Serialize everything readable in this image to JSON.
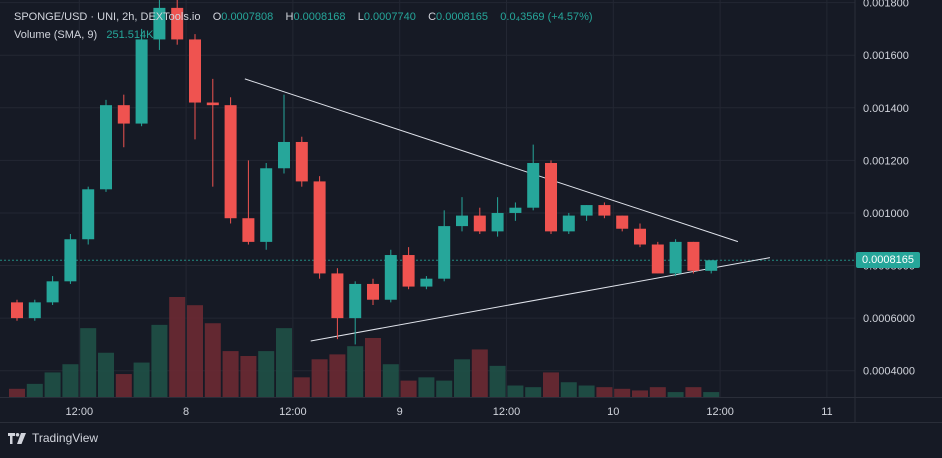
{
  "legend": {
    "symbol": "SPONGE/USD · UNI, 2h, DEXTools.io",
    "o_label": "O",
    "o": "0.0007808",
    "h_label": "H",
    "h": "0.0008168",
    "l_label": "L",
    "l": "0.0007740",
    "c_label": "C",
    "c": "0.0008165",
    "change": "0.0₄3569 (+4.57%)",
    "volume_label": "Volume (SMA, 9)",
    "volume_value": "251.514K"
  },
  "last_price_label": "0.0008165",
  "footer": {
    "brand": "TradingView"
  },
  "colors": {
    "background": "#161a25",
    "up": "#26a69a",
    "down": "#ef5350",
    "grid": "#232733",
    "text": "#d1d4dc"
  },
  "chart_data": {
    "type": "candlestick",
    "title": "SPONGE/USD · UNI, 2h, DEXTools.io",
    "ylim": [
      0.0003,
      0.00181
    ],
    "y_ticks": [
      "0.0004000",
      "0.0006000",
      "0.0008000",
      "0.001000",
      "0.001200",
      "0.001400",
      "0.001600",
      "0.001800"
    ],
    "y_tick_values": [
      0.0004,
      0.0006,
      0.0008,
      0.001,
      0.0012,
      0.0014,
      0.0016,
      0.0018
    ],
    "x_ticks": [
      {
        "label": "12:00",
        "index": 3.5
      },
      {
        "label": "8",
        "index": 9.5
      },
      {
        "label": "12:00",
        "index": 15.5
      },
      {
        "label": "9",
        "index": 21.5
      },
      {
        "label": "12:00",
        "index": 27.5
      },
      {
        "label": "10",
        "index": 33.5
      },
      {
        "label": "12:00",
        "index": 39.5
      },
      {
        "label": "11",
        "index": 45.5
      }
    ],
    "candles": [
      {
        "o": 0.00066,
        "h": 0.00067,
        "l": 0.00059,
        "c": 0.0006
      },
      {
        "o": 0.0006,
        "h": 0.00067,
        "l": 0.00059,
        "c": 0.00066
      },
      {
        "o": 0.00066,
        "h": 0.00076,
        "l": 0.00065,
        "c": 0.00074
      },
      {
        "o": 0.00074,
        "h": 0.00092,
        "l": 0.00073,
        "c": 0.0009
      },
      {
        "o": 0.0009,
        "h": 0.0011,
        "l": 0.00088,
        "c": 0.00109
      },
      {
        "o": 0.00109,
        "h": 0.00143,
        "l": 0.00108,
        "c": 0.00141
      },
      {
        "o": 0.00141,
        "h": 0.00145,
        "l": 0.00125,
        "c": 0.00134
      },
      {
        "o": 0.00134,
        "h": 0.0017,
        "l": 0.00133,
        "c": 0.00166
      },
      {
        "o": 0.00166,
        "h": 0.00182,
        "l": 0.00162,
        "c": 0.00178
      },
      {
        "o": 0.00178,
        "h": 0.00182,
        "l": 0.00164,
        "c": 0.00166
      },
      {
        "o": 0.00166,
        "h": 0.00168,
        "l": 0.00128,
        "c": 0.00142
      },
      {
        "o": 0.00142,
        "h": 0.00151,
        "l": 0.0011,
        "c": 0.00141
      },
      {
        "o": 0.00141,
        "h": 0.00144,
        "l": 0.00096,
        "c": 0.00098
      },
      {
        "o": 0.00098,
        "h": 0.0012,
        "l": 0.00088,
        "c": 0.00089
      },
      {
        "o": 0.00089,
        "h": 0.00119,
        "l": 0.00086,
        "c": 0.00117
      },
      {
        "o": 0.00117,
        "h": 0.00145,
        "l": 0.00115,
        "c": 0.00127
      },
      {
        "o": 0.00127,
        "h": 0.00129,
        "l": 0.0011,
        "c": 0.00112
      },
      {
        "o": 0.00112,
        "h": 0.00114,
        "l": 0.00075,
        "c": 0.00077
      },
      {
        "o": 0.00077,
        "h": 0.00079,
        "l": 0.00052,
        "c": 0.0006
      },
      {
        "o": 0.0006,
        "h": 0.00074,
        "l": 0.0005,
        "c": 0.00073
      },
      {
        "o": 0.00073,
        "h": 0.00075,
        "l": 0.00065,
        "c": 0.00067
      },
      {
        "o": 0.00067,
        "h": 0.00086,
        "l": 0.00066,
        "c": 0.00084
      },
      {
        "o": 0.00084,
        "h": 0.00087,
        "l": 0.00071,
        "c": 0.00072
      },
      {
        "o": 0.00072,
        "h": 0.00076,
        "l": 0.00071,
        "c": 0.00075
      },
      {
        "o": 0.00075,
        "h": 0.00101,
        "l": 0.00074,
        "c": 0.00095
      },
      {
        "o": 0.00095,
        "h": 0.00106,
        "l": 0.00093,
        "c": 0.00099
      },
      {
        "o": 0.00099,
        "h": 0.00102,
        "l": 0.00092,
        "c": 0.00093
      },
      {
        "o": 0.00093,
        "h": 0.00106,
        "l": 0.00091,
        "c": 0.001
      },
      {
        "o": 0.001,
        "h": 0.00104,
        "l": 0.00097,
        "c": 0.00102
      },
      {
        "o": 0.00102,
        "h": 0.00126,
        "l": 0.00101,
        "c": 0.00119
      },
      {
        "o": 0.00119,
        "h": 0.0012,
        "l": 0.00092,
        "c": 0.00093
      },
      {
        "o": 0.00093,
        "h": 0.001,
        "l": 0.00092,
        "c": 0.00099
      },
      {
        "o": 0.00099,
        "h": 0.00103,
        "l": 0.00097,
        "c": 0.00103
      },
      {
        "o": 0.00103,
        "h": 0.00104,
        "l": 0.00098,
        "c": 0.00099
      },
      {
        "o": 0.00099,
        "h": 0.00099,
        "l": 0.00093,
        "c": 0.00094
      },
      {
        "o": 0.00094,
        "h": 0.00096,
        "l": 0.00087,
        "c": 0.00088
      },
      {
        "o": 0.00088,
        "h": 0.00089,
        "l": 0.00077,
        "c": 0.00077
      },
      {
        "o": 0.00077,
        "h": 0.0009,
        "l": 0.00076,
        "c": 0.00089
      },
      {
        "o": 0.00089,
        "h": 0.00089,
        "l": 0.00077,
        "c": 0.00078
      },
      {
        "o": 0.00078,
        "h": 0.00082,
        "l": 0.00077,
        "c": 0.00082
      }
    ],
    "volume": {
      "name": "Volume (SMA, 9)",
      "bars": [
        5,
        8,
        15,
        20,
        42,
        27,
        14,
        21,
        44,
        61,
        56,
        45,
        28,
        25,
        28,
        42,
        12,
        23,
        26,
        31,
        36,
        20,
        10,
        12,
        10,
        23,
        29,
        19,
        7,
        6,
        15,
        9,
        7,
        6,
        5,
        4,
        6,
        3,
        6,
        3
      ]
    },
    "trendlines": [
      {
        "name": "upper",
        "from": {
          "index": 12.8,
          "price": 0.00151
        },
        "to": {
          "index": 40.5,
          "price": 0.000891
        }
      },
      {
        "name": "lower",
        "from": {
          "index": 16.5,
          "price": 0.000513
        },
        "to": {
          "index": 42.3,
          "price": 0.00083
        }
      }
    ]
  }
}
